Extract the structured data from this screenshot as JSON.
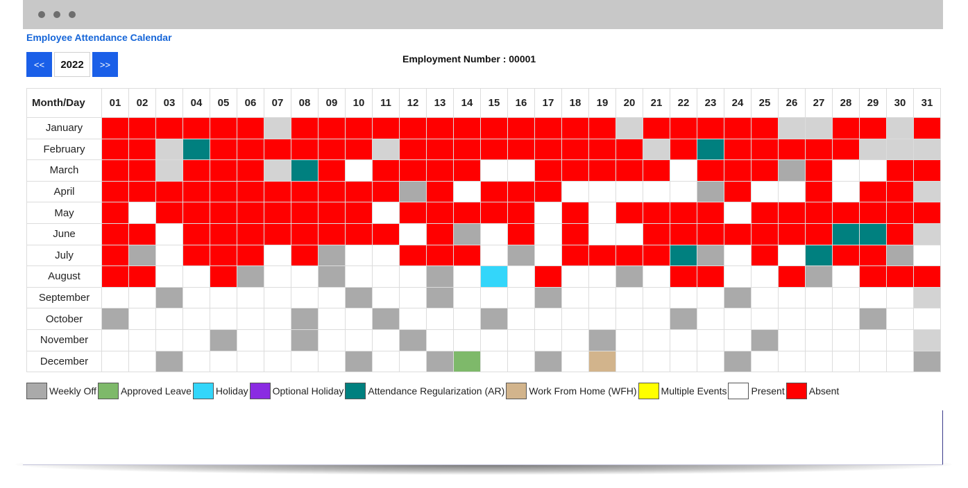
{
  "page": {
    "title": "Employee Attendance Calendar",
    "employment_number_text": "Employment Number : 00001"
  },
  "nav": {
    "prev_label": "<<",
    "year": "2022",
    "next_label": ">>"
  },
  "table": {
    "corner_label": "Month/Day",
    "days": [
      "01",
      "02",
      "03",
      "04",
      "05",
      "06",
      "07",
      "08",
      "09",
      "10",
      "11",
      "12",
      "13",
      "14",
      "15",
      "16",
      "17",
      "18",
      "19",
      "20",
      "21",
      "22",
      "23",
      "24",
      "25",
      "26",
      "27",
      "28",
      "29",
      "30",
      "31"
    ]
  },
  "status_colors": {
    "W": "#aaaaaa",
    "L": "#7eb96a",
    "H": "#33d6fa",
    "O": "#8a2be2",
    "A": "#00807f",
    "F": "#d2b48c",
    "M": "#ffff00",
    "P": "#ffffff",
    "X": "#ff0000",
    "N": "#d3d3d3"
  },
  "months": [
    {
      "name": "January",
      "days": "XXXXXXNXXXXXXXXXXXXNXXXXXNNXXNX"
    },
    {
      "name": "February",
      "days": "XXNAXXXXXXNXXXXXXXXXNXAXXXXXNNN"
    },
    {
      "name": "March",
      "days": "XXNXXXNAXPXXXXPPXXXXXPXXXWXPPXX"
    },
    {
      "name": "April",
      "days": "XXXXXXXXXXXWXPXXXPPPPPWXPPXPXXN"
    },
    {
      "name": "May",
      "days": "XPXXXXXXXXPXXXXXPXPXXXXPXXXXXXX"
    },
    {
      "name": "June",
      "days": "XXPXXXXXXXXPXWPXPXPPXXXXXXXAAXN"
    },
    {
      "name": "July",
      "days": "XWPXXXPXWPPXXXPWPXXXXAWPXPAXXWP"
    },
    {
      "name": "August",
      "days": "XXPPXWPPWPPPWPHPXPPWPXXPPXWPXXX"
    },
    {
      "name": "September",
      "days": "PPWPPPPPPWPPWPPPWPPPPPPWPPPPPPN"
    },
    {
      "name": "October",
      "days": "WPPPPPPWPPWPPPWPPPPPPWPPPPPPWPP"
    },
    {
      "name": "November",
      "days": "PPPPWPPWPPPWPPPPPPWPPPPPWPPPPPN"
    },
    {
      "name": "December",
      "days": "PPWPPPPPPWPPWLPPWPFPPPPWPPPPPPW"
    }
  ],
  "legend": [
    {
      "code": "W",
      "label": "Weekly Off"
    },
    {
      "code": "L",
      "label": "Approved Leave"
    },
    {
      "code": "H",
      "label": "Holiday"
    },
    {
      "code": "O",
      "label": "Optional Holiday"
    },
    {
      "code": "A",
      "label": "Attendance Regularization (AR)"
    },
    {
      "code": "F",
      "label": "Work From Home (WFH)"
    },
    {
      "code": "M",
      "label": "Multiple Events"
    },
    {
      "code": "P",
      "label": "Present"
    },
    {
      "code": "X",
      "label": "Absent"
    }
  ]
}
